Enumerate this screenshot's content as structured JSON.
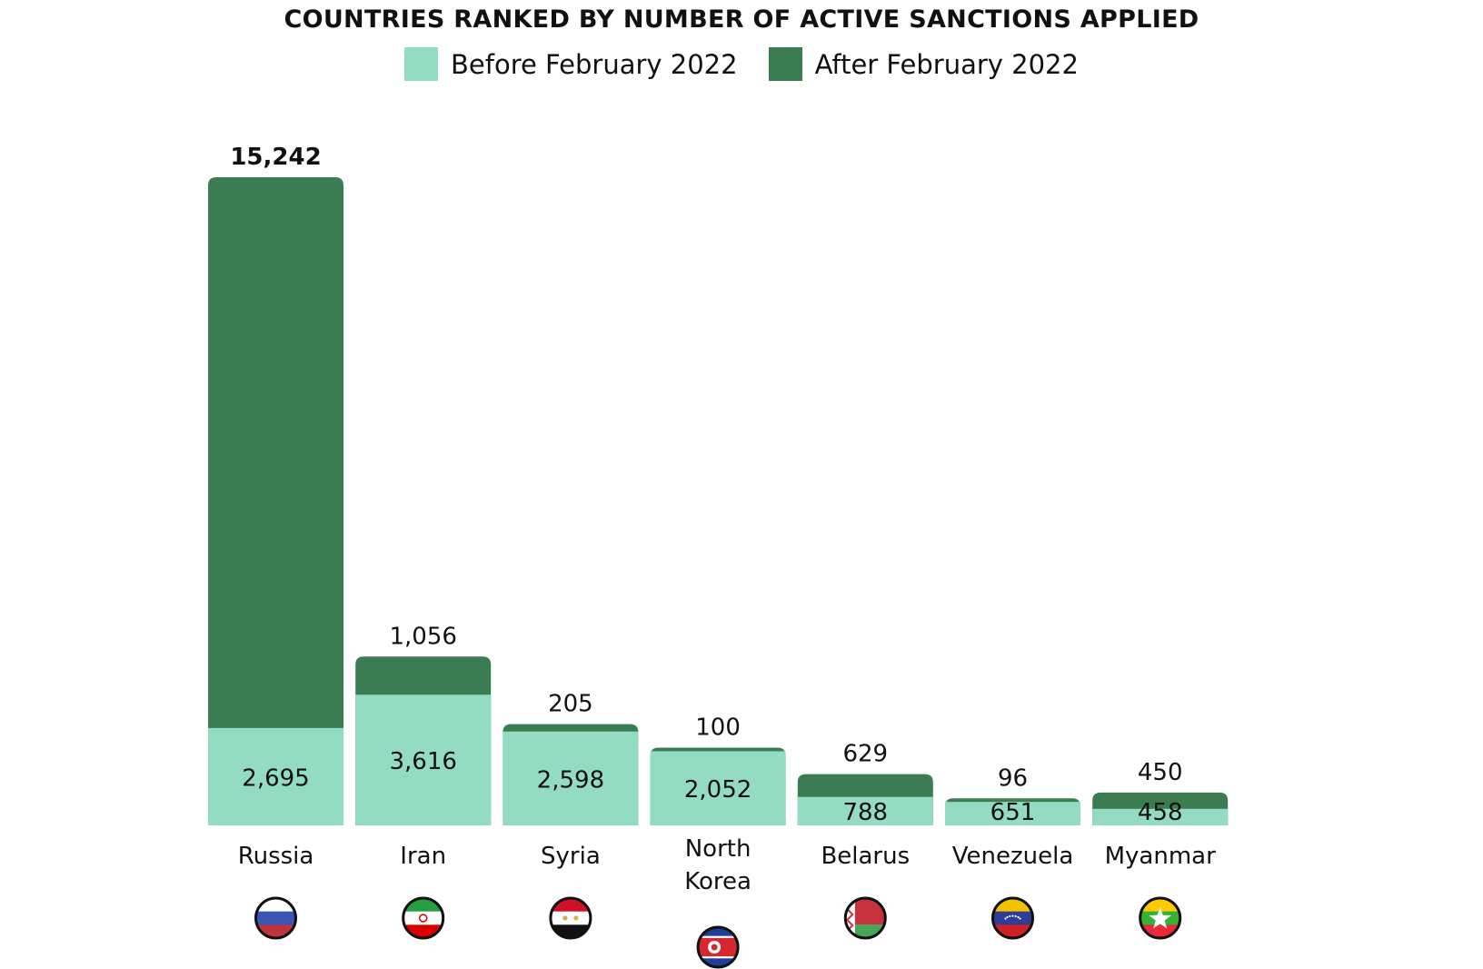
{
  "chart_data": {
    "type": "bar",
    "stacked": true,
    "title": "COUNTRIES RANKED BY NUMBER OF ACTIVE SANCTIONS APPLIED",
    "categories": [
      "Russia",
      "Iran",
      "Syria",
      "North Korea",
      "Belarus",
      "Venezuela",
      "Myanmar"
    ],
    "category_lines": [
      [
        "Russia"
      ],
      [
        "Iran"
      ],
      [
        "Syria"
      ],
      [
        "North",
        "Korea"
      ],
      [
        "Belarus"
      ],
      [
        "Venezuela"
      ],
      [
        "Myanmar"
      ]
    ],
    "series": [
      {
        "name": "Before February 2022",
        "color": "#94dcc1",
        "values": [
          2695,
          3616,
          2598,
          2052,
          788,
          651,
          458
        ],
        "labels": [
          "2,695",
          "3,616",
          "2,598",
          "2,052",
          "788",
          "651",
          "458"
        ]
      },
      {
        "name": "After February 2022",
        "color": "#3b7c52",
        "values": [
          15242,
          1056,
          205,
          100,
          629,
          96,
          450
        ],
        "labels": [
          "15,242",
          "1,056",
          "205",
          "100",
          "629",
          "96",
          "450"
        ]
      }
    ],
    "flag_icons": [
      "russia-flag-icon",
      "iran-flag-icon",
      "syria-flag-icon",
      "north-korea-flag-icon",
      "belarus-flag-icon",
      "venezuela-flag-icon",
      "myanmar-flag-icon"
    ],
    "legend_position": "top-center",
    "grid": false
  }
}
